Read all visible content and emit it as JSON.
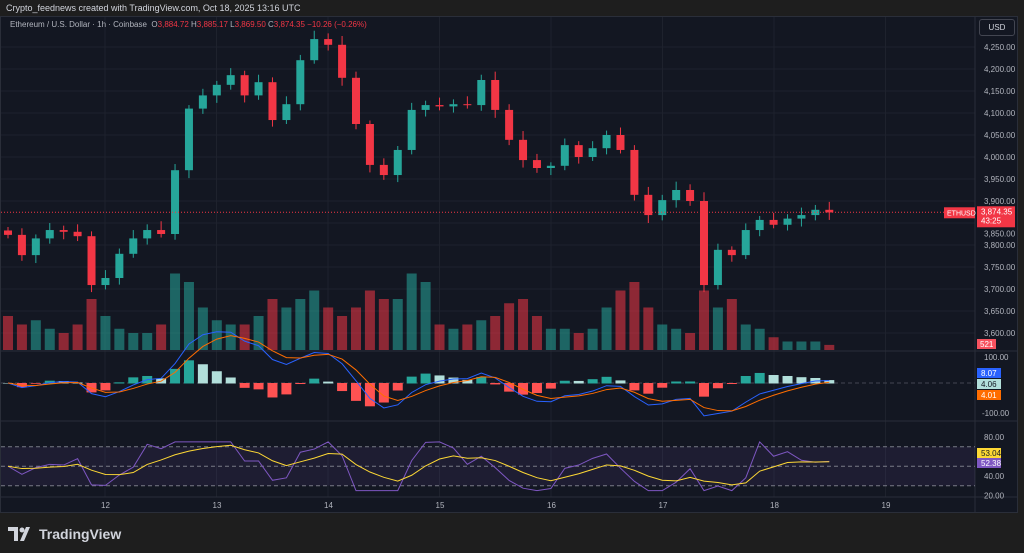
{
  "credit": "Crypto_feednews created with TradingView.com, Oct 18, 2025 13:16 UTC",
  "legend": {
    "symbol": "Ethereum / U.S. Dollar · 1h · Coinbase",
    "o_label": "O",
    "o": "3,884.72",
    "h_label": "H",
    "h": "3,885.17",
    "l_label": "L",
    "l": "3,869.50",
    "c_label": "C",
    "c": "3,874.35",
    "change": "−10.26 (−0.26%)"
  },
  "currency_button": "USD",
  "logo_text": "TradingView",
  "colors": {
    "up": "#26a69a",
    "down": "#f23645",
    "background": "#131722",
    "macd": "#2962ff",
    "signal": "#ff6d00",
    "rsi": "#7e57c2",
    "rsi_ma": "#fdd835"
  },
  "chart_data": {
    "type": "candlestick",
    "interval": "1h",
    "x_start": "Oct 11 03:00",
    "x_step_hours": 3,
    "closes": [
      3823,
      3777,
      3815,
      3834,
      3830,
      3820,
      3709,
      3725,
      3780,
      3815,
      3834,
      3825,
      3970,
      4110,
      4140,
      4164,
      4186,
      4140,
      4170,
      4084,
      4120,
      4220,
      4268,
      4255,
      4180,
      4075,
      3982,
      3959,
      4016,
      4107,
      4118,
      4115,
      4120,
      4118,
      4175,
      4107,
      4039,
      3993,
      3975,
      3980,
      4027,
      4000,
      4020,
      4050,
      4016,
      3914,
      3868,
      3902,
      3925,
      3900,
      3709,
      3789,
      3777,
      3834,
      3857,
      3846,
      3860,
      3868,
      3880,
      3874
    ],
    "volumes": [
      4,
      3,
      3.5,
      2.5,
      2,
      3,
      6,
      4,
      2.5,
      2,
      2,
      3,
      9,
      8,
      5,
      3.5,
      3,
      3,
      4,
      6,
      5,
      6,
      7,
      5,
      4,
      5,
      7,
      6,
      6,
      9,
      8,
      3,
      2.5,
      3,
      3.5,
      4,
      5.5,
      6,
      4,
      2.5,
      2.5,
      2,
      2.5,
      5,
      7,
      8,
      5,
      3,
      2.5,
      2,
      7,
      5,
      6,
      3,
      2.5,
      1.5,
      1,
      1,
      1,
      0.6
    ],
    "price_axis": [
      "4,250.00",
      "4,200.00",
      "4,150.00",
      "4,100.00",
      "4,050.00",
      "4,000.00",
      "3,950.00",
      "3,900.00",
      "3,850.00",
      "3,800.00",
      "3,750.00",
      "3,700.00",
      "3,650.00",
      "3,600.00"
    ],
    "ylim": [
      3575,
      4280
    ],
    "x_ticks": [
      "12",
      "13",
      "14",
      "15",
      "16",
      "17",
      "18",
      "19"
    ],
    "last_price": {
      "symbol": "ETHUSD",
      "price": "3,874.35",
      "countdown": "43:25"
    },
    "volume_label": "521",
    "macd": {
      "axis": [
        "100.00",
        "-100.00"
      ],
      "macd_label": "8.07",
      "hist_label": "4.06",
      "signal_label": "4.01"
    },
    "rsi": {
      "axis": [
        "80.00",
        "40.00",
        "20.00"
      ],
      "rsi_label": "52.38",
      "ma_label": "53.04",
      "bands": [
        70,
        50,
        30
      ]
    }
  }
}
